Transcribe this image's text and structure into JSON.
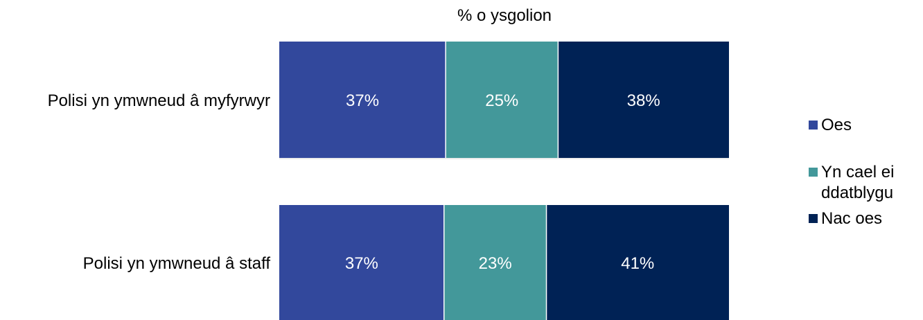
{
  "chart_data": {
    "type": "bar",
    "orientation": "horizontal",
    "stacked": true,
    "title": "% o ysgolion",
    "categories": [
      "Polisi yn ymwneud â myfyrwyr",
      "Polisi yn ymwneud â staff"
    ],
    "series": [
      {
        "name": "Oes",
        "values": [
          37,
          37
        ],
        "labels": [
          "37%",
          "37%"
        ],
        "color": "#32489C"
      },
      {
        "name": "Yn cael ei ddatblygu",
        "values": [
          25,
          23
        ],
        "labels": [
          "25%",
          "23%"
        ],
        "color": "#43989A"
      },
      {
        "name": "Nac oes",
        "values": [
          38,
          41
        ],
        "labels": [
          "38%",
          "41%"
        ],
        "color": "#002255"
      }
    ],
    "xlim": [
      0,
      100
    ],
    "grid": false,
    "legend_position": "right"
  }
}
